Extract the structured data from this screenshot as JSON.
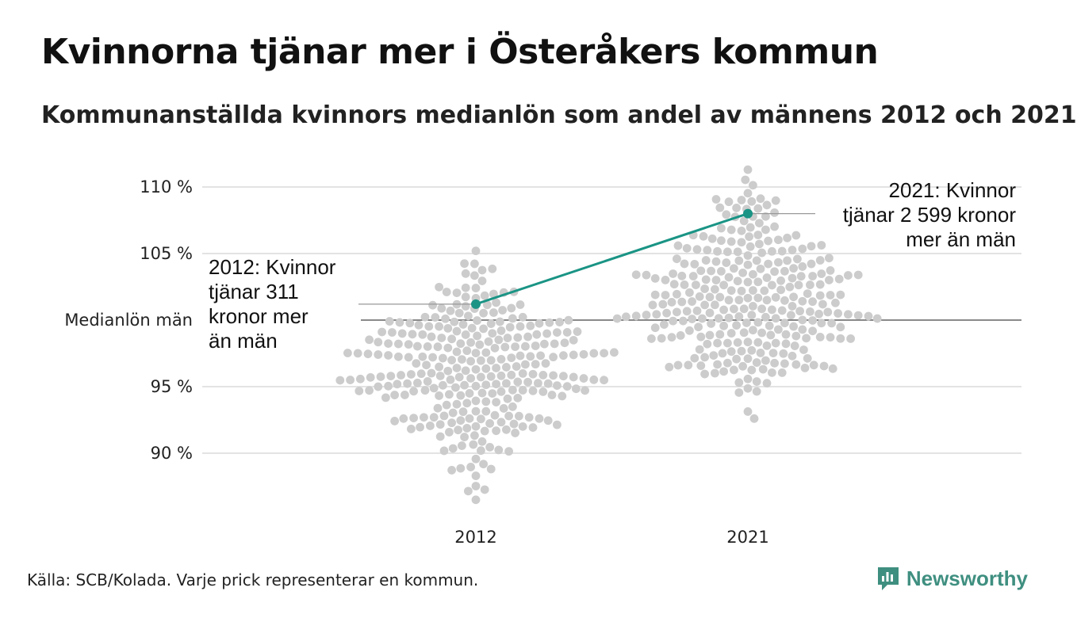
{
  "header": {
    "title": "Kvinnorna tjänar mer i Österåkers kommun",
    "subtitle": "Kommunanställda kvinnors medianlön som andel av männens 2012 och 2021"
  },
  "footer": {
    "source": "Källa: SCB/Kolada. Varje prick representerar en kommun.",
    "brand": "Newsworthy",
    "brand_icon": "newsworthy-logo-icon"
  },
  "colors": {
    "dots": "#cccccc",
    "highlight": "#1a9485",
    "grid": "#e3e3e3",
    "reference": "#444444",
    "brand": "#3f8f80"
  },
  "chart_data": {
    "type": "scatter",
    "subtype": "beeswarm",
    "categories": [
      "2012",
      "2021"
    ],
    "y_ticks": [
      {
        "value": 90,
        "label": "90 %"
      },
      {
        "value": 95,
        "label": "95 %"
      },
      {
        "value": 100,
        "label": "Medianlön män"
      },
      {
        "value": 105,
        "label": "105 %"
      },
      {
        "value": 110,
        "label": "110 %"
      }
    ],
    "ylim": [
      86,
      112
    ],
    "grid": true,
    "reference_line": {
      "value": 100,
      "label": "Medianlön män"
    },
    "distributions": [
      {
        "category": "2012",
        "n": 290,
        "min": 86.5,
        "max": 105.2,
        "center": 96.3
      },
      {
        "category": "2021",
        "n": 290,
        "min": 92.6,
        "max": 111.3,
        "center": 101.6
      }
    ],
    "highlight": {
      "name": "Österåkers kommun",
      "values": [
        {
          "x": "2012",
          "y": 101.2
        },
        {
          "x": "2021",
          "y": 108.0
        }
      ]
    },
    "annotations": [
      {
        "category": "2012",
        "lines": [
          "2012: Kvinnor",
          "tjänar 311",
          "kronor mer",
          "än män"
        ]
      },
      {
        "category": "2021",
        "lines": [
          "2021: Kvinnor",
          "tjänar 2 599 kronor",
          "mer än män"
        ]
      }
    ]
  }
}
